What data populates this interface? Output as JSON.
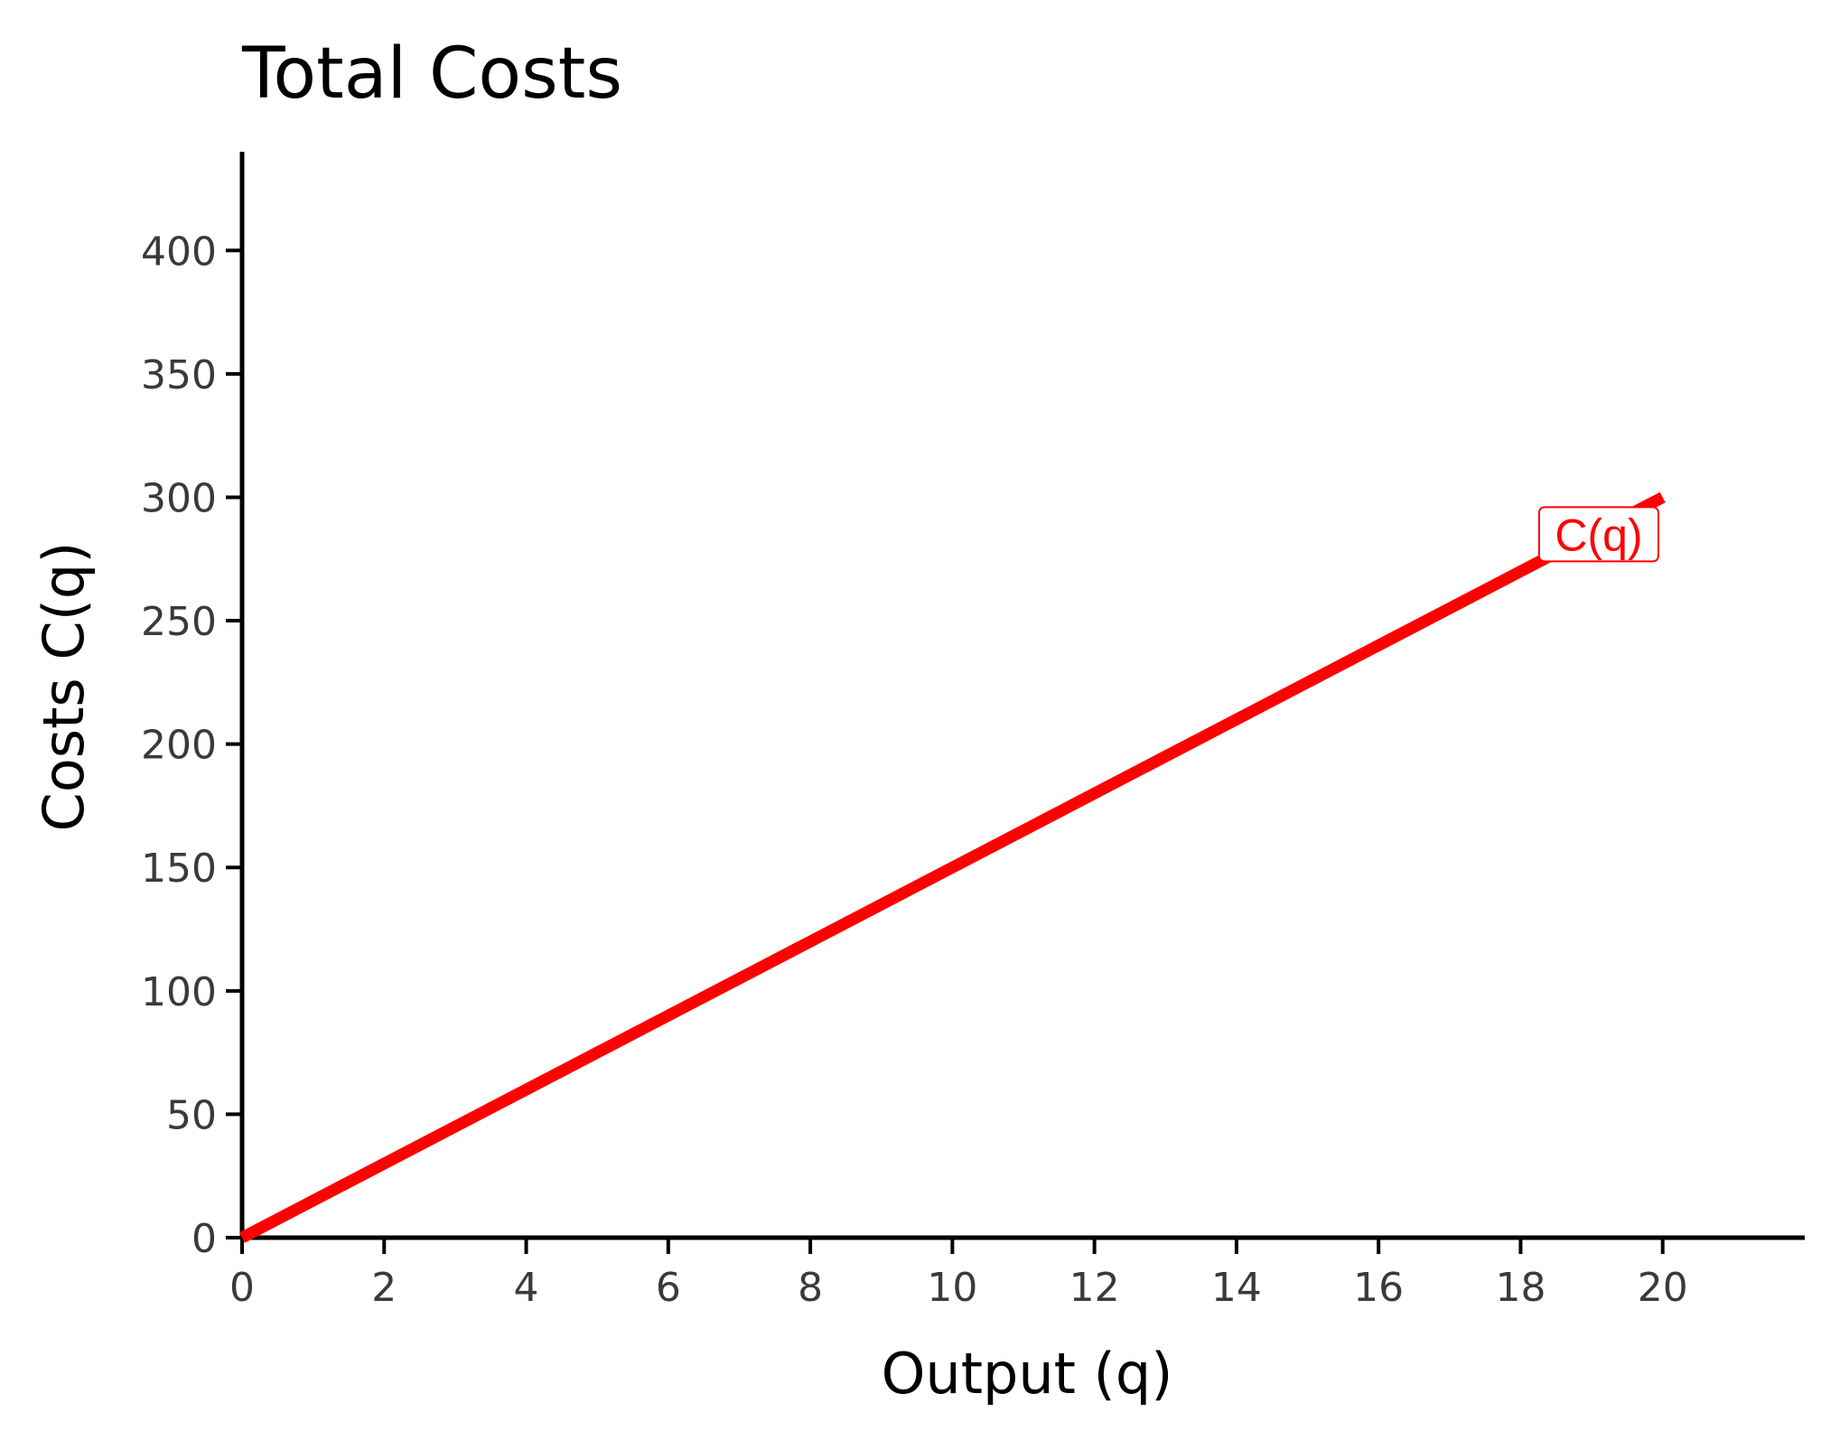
{
  "chart_data": {
    "type": "line",
    "title": "Total Costs",
    "xlabel": "Output (q)",
    "ylabel": "Costs C(q)",
    "xlim": [
      0,
      22
    ],
    "ylim": [
      0,
      440
    ],
    "x_ticks": [
      0,
      2,
      4,
      6,
      8,
      10,
      12,
      14,
      16,
      18,
      20
    ],
    "y_ticks": [
      0,
      50,
      100,
      150,
      200,
      250,
      300,
      350,
      400
    ],
    "grid": false,
    "series": [
      {
        "name": "C(q)",
        "color": "#ff0000",
        "x": [
          0,
          20
        ],
        "y": [
          0,
          300
        ]
      }
    ],
    "annotations": [
      {
        "text": "C(q)",
        "x": 19.1,
        "y": 285,
        "color": "#ff0000"
      }
    ]
  }
}
